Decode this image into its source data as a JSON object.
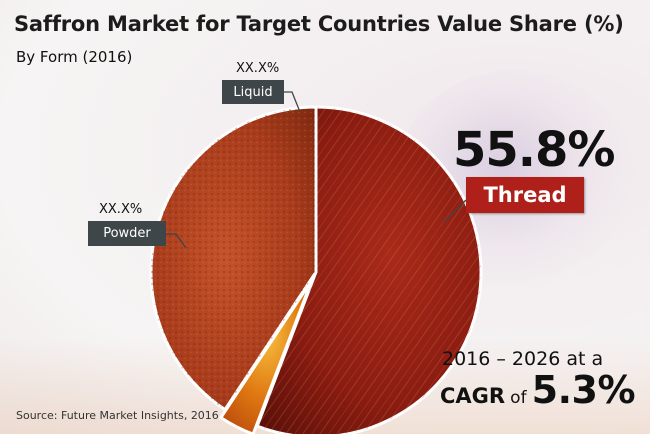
{
  "title": "Saffron Market for Target Countries Value Share (%)",
  "subtitle": "By Form (2016)",
  "source": "Source: Future Market Insights, 2016",
  "highlight": {
    "value": "55.8%",
    "label": "Thread"
  },
  "slice_labels": {
    "liquid": {
      "pct": "XX.X%",
      "name": "Liquid"
    },
    "powder": {
      "pct": "XX.X%",
      "name": "Powder"
    }
  },
  "cagr": {
    "period": "2016 – 2026",
    "at_a": "at a",
    "cagr": "CAGR",
    "of": "of",
    "value": "5.3%"
  },
  "colors": {
    "thread": "#8f1d14",
    "powder": "#b84a22",
    "liquid": "#d86a10",
    "badge_red": "#b0201a",
    "badge_gray": "#3f4649"
  },
  "chart_data": {
    "type": "pie",
    "title": "Saffron Market for Target Countries Value Share (%)",
    "subtitle": "By Form (2016)",
    "slices": [
      {
        "label": "Thread",
        "value": 55.8,
        "display": "55.8%"
      },
      {
        "label": "Liquid",
        "value": 3.5,
        "display": "XX.X%"
      },
      {
        "label": "Powder",
        "value": 40.7,
        "display": "XX.X%"
      }
    ]
  }
}
